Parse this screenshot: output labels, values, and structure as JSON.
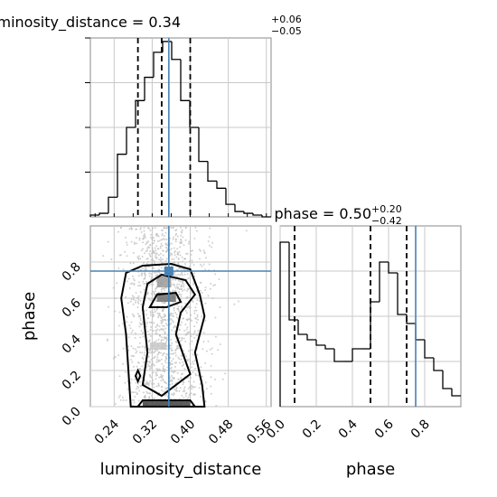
{
  "chart_data": [
    {
      "type": "histogram",
      "panel": "luminosity_distance-marginal",
      "title": {
        "text": "luminosity_distance = 0.34",
        "sup": "+0.06",
        "sub": "−0.05"
      },
      "xlim": [
        0.19,
        0.57
      ],
      "bins": [
        0.19,
        0.209,
        0.228,
        0.247,
        0.266,
        0.285,
        0.304,
        0.323,
        0.342,
        0.361,
        0.38,
        0.399,
        0.418,
        0.437,
        0.456,
        0.475,
        0.494,
        0.513,
        0.532,
        0.551,
        0.57
      ],
      "values": [
        0.01,
        0.02,
        0.11,
        0.35,
        0.5,
        0.65,
        0.78,
        0.92,
        0.98,
        0.88,
        0.65,
        0.5,
        0.31,
        0.2,
        0.16,
        0.07,
        0.03,
        0.02,
        0.01,
        0.0
      ],
      "quantiles": [
        0.29,
        0.34,
        0.4
      ],
      "truth": 0.355,
      "grid": true
    },
    {
      "type": "histogram",
      "panel": "phase-marginal",
      "title": {
        "text": "phase = 0.50",
        "sup": "+0.20",
        "sub": "−0.42"
      },
      "xlim": [
        0.0,
        1.0
      ],
      "bins": [
        0.0,
        0.05,
        0.1,
        0.15,
        0.2,
        0.25,
        0.3,
        0.35,
        0.4,
        0.45,
        0.5,
        0.55,
        0.6,
        0.65,
        0.7,
        0.75,
        0.8,
        0.85,
        0.9,
        0.95,
        1.0
      ],
      "values": [
        0.91,
        0.48,
        0.4,
        0.37,
        0.34,
        0.32,
        0.25,
        0.25,
        0.32,
        0.32,
        0.58,
        0.8,
        0.74,
        0.51,
        0.46,
        0.37,
        0.27,
        0.2,
        0.1,
        0.06
      ],
      "quantiles": [
        0.08,
        0.5,
        0.7
      ],
      "truth": 0.75,
      "grid": true
    },
    {
      "type": "contour-scatter",
      "panel": "2d-density",
      "xlim": [
        0.19,
        0.57
      ],
      "ylim": [
        0.0,
        1.0
      ],
      "truth": {
        "x": 0.355,
        "y": 0.75
      },
      "grid": true
    }
  ],
  "axes": {
    "xlabel_left": "luminosity_distance",
    "xlabel_right": "phase",
    "ylabel_left": "phase",
    "x_ticks_left": [
      "0.24",
      "0.32",
      "0.40",
      "0.48",
      "0.56"
    ],
    "x_tick_values_left": [
      0.24,
      0.32,
      0.4,
      0.48,
      0.56
    ],
    "y_ticks_left": [
      "0.0",
      "0.2",
      "0.4",
      "0.6",
      "0.8"
    ],
    "y_tick_values_left": [
      0.0,
      0.2,
      0.4,
      0.6,
      0.8
    ],
    "x_ticks_right": [
      "0.0",
      "0.2",
      "0.4",
      "0.6",
      "0.8"
    ],
    "x_tick_values_right": [
      0.0,
      0.2,
      0.4,
      0.6,
      0.8
    ]
  },
  "colors": {
    "truth": "#4682b4",
    "line": "#000000",
    "grid": "#c8c8c8",
    "scatter": "#bdbdbd"
  }
}
